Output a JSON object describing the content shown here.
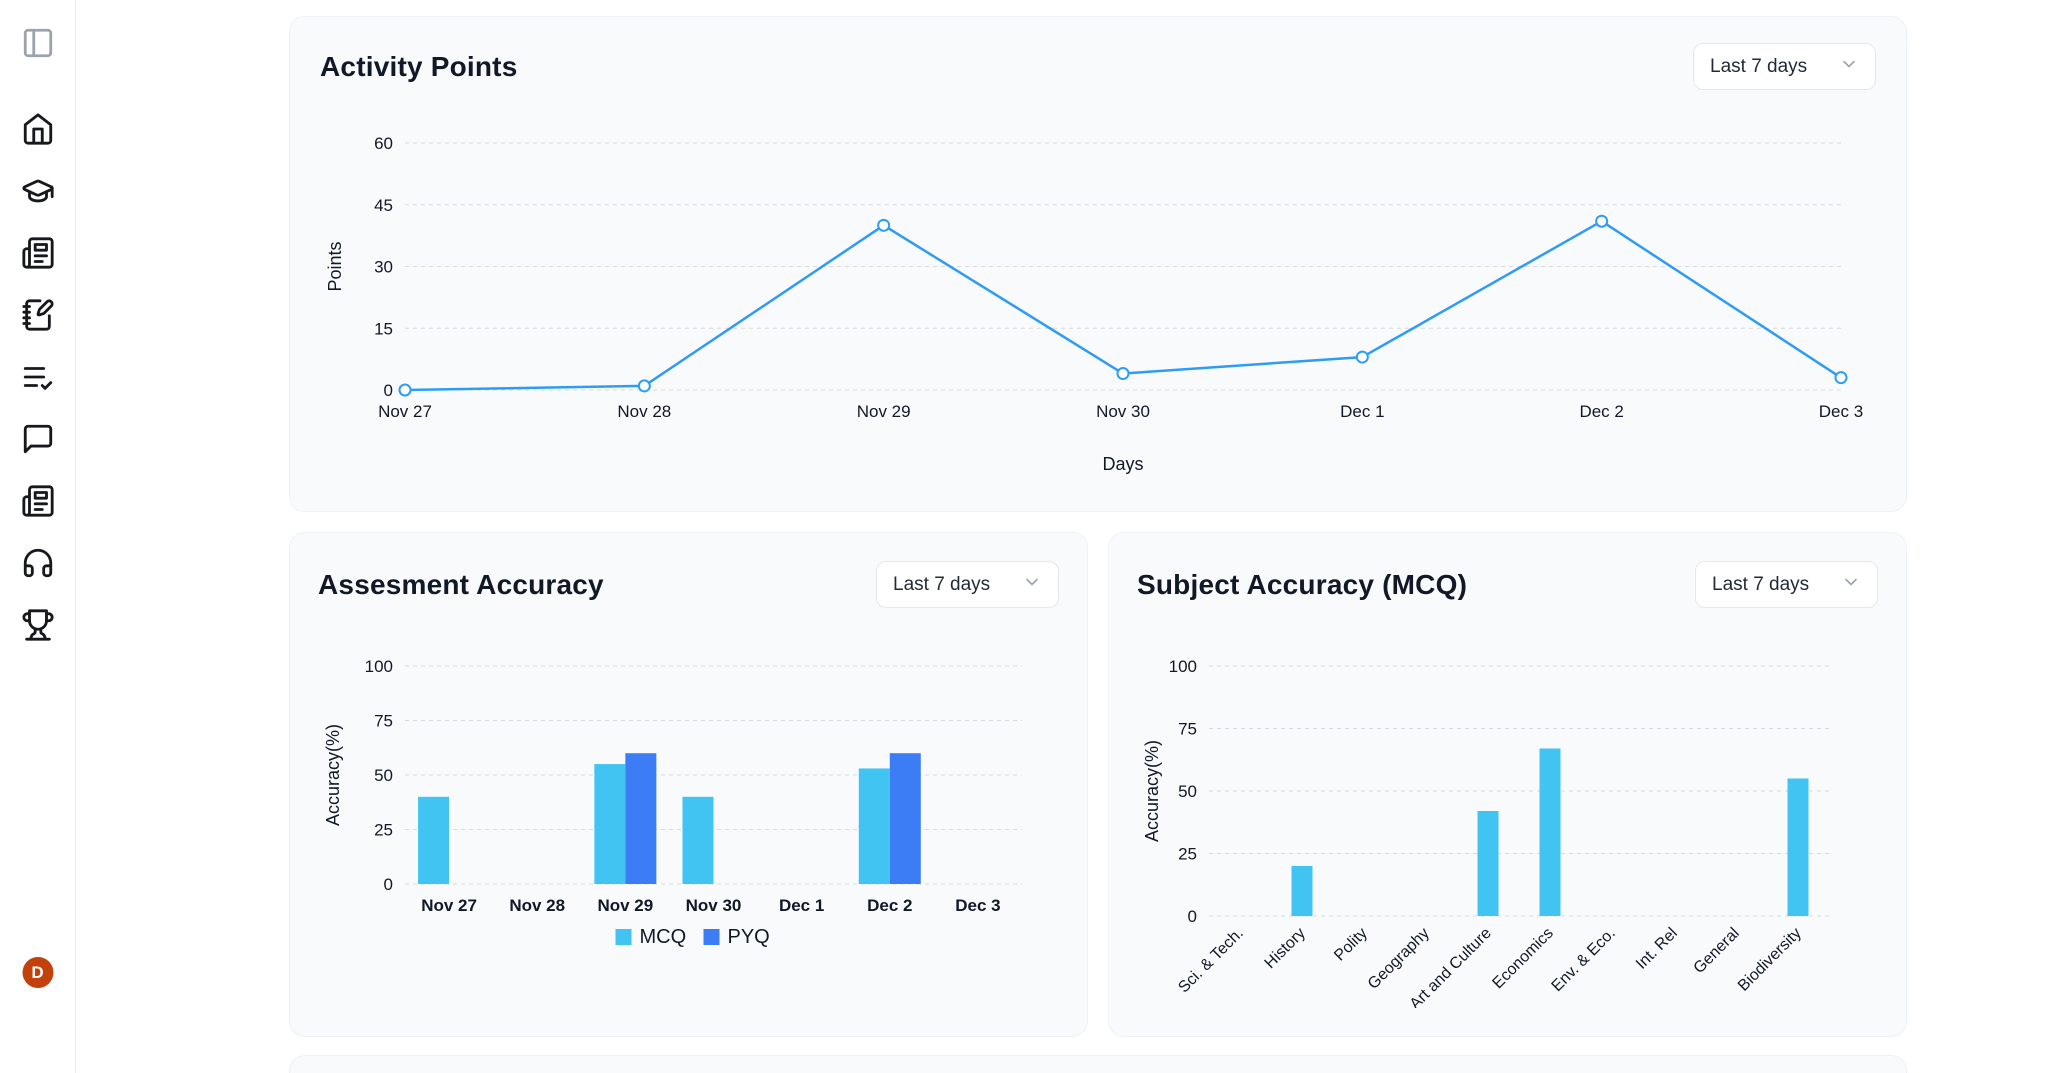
{
  "sidebar": {
    "avatar_initial": "D",
    "avatar_color": "#c2410c",
    "items": [
      {
        "name": "panel-toggle"
      },
      {
        "name": "home"
      },
      {
        "name": "courses"
      },
      {
        "name": "news"
      },
      {
        "name": "notes"
      },
      {
        "name": "tests"
      },
      {
        "name": "chat"
      },
      {
        "name": "magazine"
      },
      {
        "name": "audio"
      },
      {
        "name": "leaderboard"
      }
    ]
  },
  "cards": {
    "activity": {
      "title": "Activity Points",
      "range": "Last 7 days"
    },
    "assessment": {
      "title": "Assesment Accuracy",
      "range": "Last 7 days"
    },
    "subject": {
      "title": "Subject Accuracy (MCQ)",
      "range": "Last 7 days"
    }
  },
  "chart_data": [
    {
      "type": "line",
      "title": "Activity Points",
      "x": [
        "Nov 27",
        "Nov 28",
        "Nov 29",
        "Nov 30",
        "Dec 1",
        "Dec 2",
        "Dec 3"
      ],
      "values": [
        0,
        1,
        40,
        4,
        8,
        41,
        3
      ],
      "xlabel": "Days",
      "ylabel": "Points",
      "yticks": [
        0,
        15,
        30,
        45,
        60
      ],
      "ylim": [
        0,
        60
      ],
      "line_color": "#2e9cf4",
      "grid": "horizontal-dashed",
      "legend": "none"
    },
    {
      "type": "bar",
      "title": "Assesment Accuracy",
      "categories": [
        "Nov 27",
        "Nov 28",
        "Nov 29",
        "Nov 30",
        "Dec 1",
        "Dec 2",
        "Dec 3"
      ],
      "series": [
        {
          "name": "MCQ",
          "color": "#41c4f1",
          "values": [
            40,
            0,
            55,
            40,
            0,
            53,
            0
          ]
        },
        {
          "name": "PYQ",
          "color": "#3c7cf4",
          "values": [
            0,
            0,
            60,
            0,
            0,
            60,
            0
          ]
        }
      ],
      "xlabel": "",
      "ylabel": "Accuracy(%)",
      "yticks": [
        0,
        25,
        50,
        75,
        100
      ],
      "ylim": [
        0,
        100
      ],
      "grid": "horizontal-dashed",
      "legend": "bottom"
    },
    {
      "type": "bar",
      "title": "Subject Accuracy (MCQ)",
      "categories": [
        "Sci. & Tech.",
        "History",
        "Polity",
        "Geography",
        "Art and Culture",
        "Economics",
        "Env. & Eco.",
        "Int. Rel",
        "General",
        "Biodiversity"
      ],
      "values": [
        0,
        20,
        0,
        0,
        42,
        67,
        0,
        0,
        0,
        55
      ],
      "bar_color": "#41c4f1",
      "xlabel": "",
      "ylabel": "Accuracy(%)",
      "yticks": [
        0,
        25,
        50,
        75,
        100
      ],
      "ylim": [
        0,
        100
      ],
      "rotate_labels": true,
      "grid": "horizontal-dashed",
      "legend": "none"
    }
  ]
}
